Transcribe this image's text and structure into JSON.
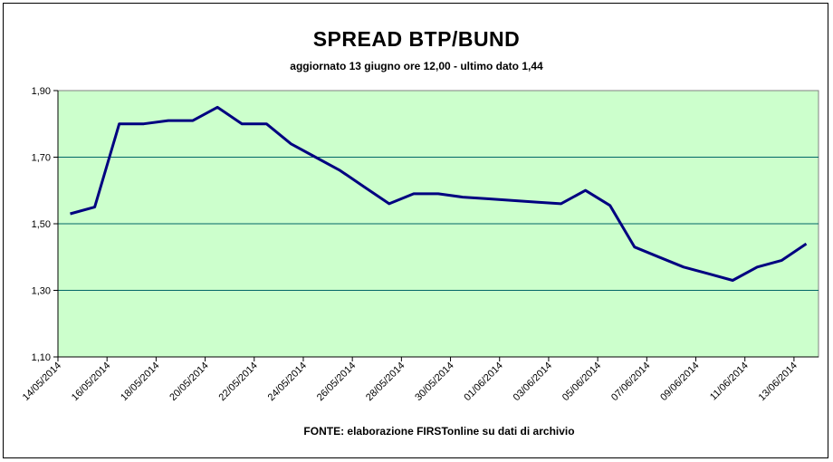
{
  "chart_data": {
    "type": "line",
    "title": "SPREAD BTP/BUND",
    "subtitle": "aggiornato 13 giugno ore 12,00 - ultimo dato 1,44",
    "source": "FONTE: elaborazione FIRSTonline su dati di archivio",
    "x_tick_labels": [
      "14/05/2014",
      "16/05/2014",
      "18/05/2014",
      "20/05/2014",
      "22/05/2014",
      "24/05/2014",
      "26/05/2014",
      "28/05/2014",
      "30/05/2014",
      "01/06/2014",
      "03/06/2014",
      "05/06/2014",
      "07/06/2014",
      "09/06/2014",
      "11/06/2014",
      "13/06/2014"
    ],
    "y_tick_labels": [
      "1,10",
      "1,30",
      "1,50",
      "1,70",
      "1,90"
    ],
    "y_ticks": [
      1.1,
      1.3,
      1.5,
      1.7,
      1.9
    ],
    "ylim": [
      1.1,
      1.9
    ],
    "grid": "horizontal",
    "plot_background": "#ccffcc",
    "grid_color": "#006666",
    "series": [
      {
        "color": "#000080",
        "x": [
          0.5,
          1.5,
          2.5,
          3.5,
          4.5,
          5.5,
          6.5,
          7.5,
          8.5,
          9.5,
          10.5,
          11.5,
          12.5,
          13.5,
          14.5,
          15.5,
          16.5,
          17.5,
          18.5,
          19.5,
          20.5,
          21.5,
          22.5,
          23.5,
          24.5,
          25.5,
          26.5,
          27.5,
          28.5,
          29.5,
          30.5
        ],
        "values": [
          1.53,
          1.55,
          1.8,
          1.8,
          1.81,
          1.81,
          1.85,
          1.8,
          1.8,
          1.74,
          1.7,
          1.66,
          1.61,
          1.56,
          1.59,
          1.59,
          1.58,
          1.575,
          1.57,
          1.565,
          1.56,
          1.6,
          1.555,
          1.43,
          1.4,
          1.37,
          1.35,
          1.33,
          1.37,
          1.39,
          1.44
        ]
      }
    ]
  }
}
